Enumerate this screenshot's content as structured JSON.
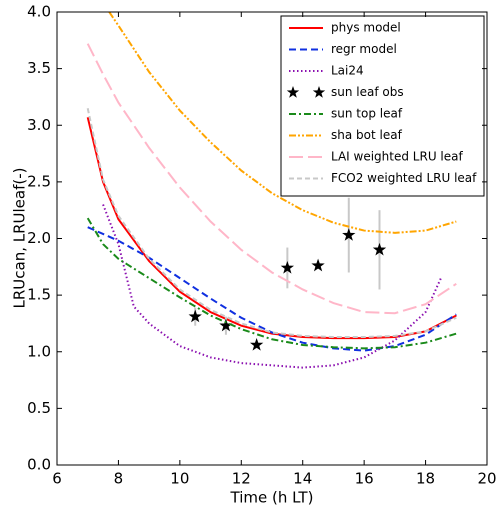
{
  "chart_data": {
    "type": "line",
    "xlabel": "Time (h LT)",
    "ylabel": "LRUcan, LRUleaf(-)",
    "xlim": [
      6,
      20
    ],
    "ylim": [
      0,
      4
    ],
    "xticks": [
      6,
      8,
      10,
      12,
      14,
      16,
      18,
      20
    ],
    "yticks": [
      {
        "value": 0,
        "label": "0.0"
      },
      0.5,
      {
        "value": 1,
        "label": "1.0"
      },
      1.5,
      {
        "value": 2,
        "label": "2.0"
      },
      2.5,
      {
        "value": 3,
        "label": "3.0"
      },
      3.5,
      {
        "value": 4,
        "label": "4.0"
      }
    ],
    "legend": "upper right",
    "series": [
      {
        "name": "phys model",
        "color": "#ff0000",
        "style": "solid",
        "x": [
          7,
          7.5,
          8,
          9,
          10,
          11,
          12,
          13,
          14,
          15,
          16,
          17,
          18,
          19
        ],
        "values": [
          3.07,
          2.5,
          2.17,
          1.8,
          1.53,
          1.35,
          1.23,
          1.16,
          1.13,
          1.12,
          1.12,
          1.13,
          1.18,
          1.32
        ]
      },
      {
        "name": "regr model",
        "color": "#1030e0",
        "style": "dashed",
        "x": [
          7,
          8,
          9,
          10,
          11,
          12,
          13,
          14,
          15,
          16,
          17,
          18,
          19
        ],
        "values": [
          2.1,
          1.98,
          1.83,
          1.65,
          1.47,
          1.3,
          1.17,
          1.08,
          1.03,
          1.01,
          1.05,
          1.15,
          1.33
        ]
      },
      {
        "name": "Lai24",
        "color": "#8b10b0",
        "style": "dotted",
        "x": [
          7.5,
          8,
          8.5,
          9,
          10,
          11,
          12,
          13,
          14,
          15,
          16,
          17,
          18,
          18.5
        ],
        "values": [
          2.3,
          1.95,
          1.4,
          1.25,
          1.05,
          0.95,
          0.9,
          0.88,
          0.86,
          0.88,
          0.95,
          1.1,
          1.35,
          1.65
        ]
      },
      {
        "name": "sun leaf obs",
        "color": "#000000",
        "style": "star",
        "x": [
          10.5,
          11.5,
          12.5,
          13.5,
          14.5,
          15.5,
          16.5
        ],
        "values": [
          1.31,
          1.23,
          1.06,
          1.74,
          1.76,
          2.03,
          1.9
        ],
        "errors": [
          0.08,
          0.08,
          0.03,
          0.18,
          0.03,
          0.33,
          0.35
        ]
      },
      {
        "name": "sun top leaf",
        "color": "#1a8a1a",
        "style": "dashdot",
        "x": [
          7,
          7.5,
          8,
          9,
          10,
          11,
          12,
          13,
          14,
          15,
          16,
          17,
          18,
          19
        ],
        "values": [
          2.18,
          1.95,
          1.82,
          1.65,
          1.48,
          1.32,
          1.2,
          1.11,
          1.06,
          1.04,
          1.03,
          1.04,
          1.08,
          1.16
        ]
      },
      {
        "name": "sha bot leaf",
        "color": "#ffa500",
        "style": "dashdotdot",
        "x": [
          7.7,
          8,
          9,
          10,
          11,
          12,
          13,
          14,
          15,
          16,
          17,
          18,
          19
        ],
        "values": [
          4.0,
          3.88,
          3.47,
          3.13,
          2.85,
          2.6,
          2.4,
          2.25,
          2.14,
          2.07,
          2.05,
          2.07,
          2.15
        ]
      },
      {
        "name": "LAI weighted LRU leaf",
        "color": "#ffb6c8",
        "style": "longdash",
        "x": [
          7,
          7.5,
          8,
          9,
          10,
          11,
          12,
          13,
          14,
          15,
          16,
          17,
          18,
          19
        ],
        "values": [
          3.72,
          3.45,
          3.2,
          2.8,
          2.45,
          2.15,
          1.9,
          1.7,
          1.55,
          1.43,
          1.35,
          1.34,
          1.42,
          1.6
        ]
      },
      {
        "name": "FCO2 weighted LRU leaf",
        "color": "#c8c8c8",
        "style": "shortdash",
        "x": [
          7,
          7.5,
          8,
          9,
          10,
          11,
          12,
          13,
          14,
          15,
          16,
          17,
          18,
          19
        ],
        "values": [
          3.15,
          2.52,
          2.2,
          1.82,
          1.55,
          1.37,
          1.25,
          1.17,
          1.14,
          1.13,
          1.13,
          1.14,
          1.18,
          1.3
        ]
      }
    ]
  }
}
